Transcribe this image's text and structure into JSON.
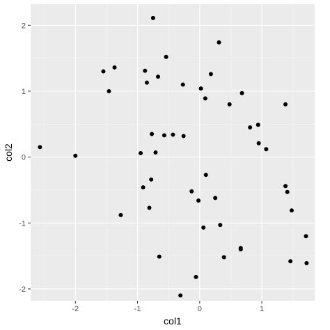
{
  "chart_data": {
    "type": "scatter",
    "title": "",
    "xlabel": "col1",
    "ylabel": "col2",
    "xlim": [
      -2.72,
      1.85
    ],
    "ylim": [
      -2.18,
      2.32
    ],
    "x_ticks": [
      -2,
      -1,
      0,
      1
    ],
    "y_ticks": [
      -2,
      -1,
      0,
      1,
      2
    ],
    "x_tick_labels": [
      "-2",
      "-1",
      "0",
      "1"
    ],
    "y_tick_labels": [
      "-2",
      "-1",
      "0",
      "1",
      "2"
    ],
    "grid": true,
    "legend": "none",
    "points": [
      {
        "x": -2.57,
        "y": 0.15
      },
      {
        "x": -2.0,
        "y": 0.02
      },
      {
        "x": -1.55,
        "y": 1.3
      },
      {
        "x": -1.46,
        "y": 1.0
      },
      {
        "x": -1.37,
        "y": 1.36
      },
      {
        "x": -1.27,
        "y": -0.88
      },
      {
        "x": -0.95,
        "y": 0.06
      },
      {
        "x": -0.91,
        "y": -0.46
      },
      {
        "x": -0.88,
        "y": 1.31
      },
      {
        "x": -0.85,
        "y": 1.13
      },
      {
        "x": -0.81,
        "y": -0.77
      },
      {
        "x": -0.78,
        "y": -0.34
      },
      {
        "x": -0.77,
        "y": 0.35
      },
      {
        "x": -0.75,
        "y": 2.11
      },
      {
        "x": -0.71,
        "y": 0.07
      },
      {
        "x": -0.67,
        "y": 1.22
      },
      {
        "x": -0.65,
        "y": -1.51
      },
      {
        "x": -0.57,
        "y": 0.33
      },
      {
        "x": -0.54,
        "y": 1.52
      },
      {
        "x": -0.43,
        "y": 0.34
      },
      {
        "x": -0.31,
        "y": -2.1
      },
      {
        "x": -0.27,
        "y": 1.1
      },
      {
        "x": -0.26,
        "y": 0.32
      },
      {
        "x": -0.13,
        "y": -0.52
      },
      {
        "x": -0.06,
        "y": -1.82
      },
      {
        "x": -0.02,
        "y": -0.66
      },
      {
        "x": 0.02,
        "y": 1.04
      },
      {
        "x": 0.06,
        "y": -1.07
      },
      {
        "x": 0.09,
        "y": 0.89
      },
      {
        "x": 0.1,
        "y": -0.27
      },
      {
        "x": 0.18,
        "y": 1.26
      },
      {
        "x": 0.25,
        "y": -0.62
      },
      {
        "x": 0.31,
        "y": 1.74
      },
      {
        "x": 0.33,
        "y": -1.03
      },
      {
        "x": 0.39,
        "y": -1.52
      },
      {
        "x": 0.48,
        "y": 0.8
      },
      {
        "x": 0.66,
        "y": -1.38
      },
      {
        "x": 0.66,
        "y": -1.4
      },
      {
        "x": 0.68,
        "y": 0.97
      },
      {
        "x": 0.81,
        "y": 0.45
      },
      {
        "x": 0.94,
        "y": 0.49
      },
      {
        "x": 0.95,
        "y": 0.21
      },
      {
        "x": 1.07,
        "y": 0.12
      },
      {
        "x": 1.38,
        "y": 0.8
      },
      {
        "x": 1.38,
        "y": -0.44
      },
      {
        "x": 1.41,
        "y": -0.53
      },
      {
        "x": 1.46,
        "y": -1.58
      },
      {
        "x": 1.48,
        "y": -0.81
      },
      {
        "x": 1.71,
        "y": -1.2
      },
      {
        "x": 1.72,
        "y": -1.61
      }
    ]
  }
}
